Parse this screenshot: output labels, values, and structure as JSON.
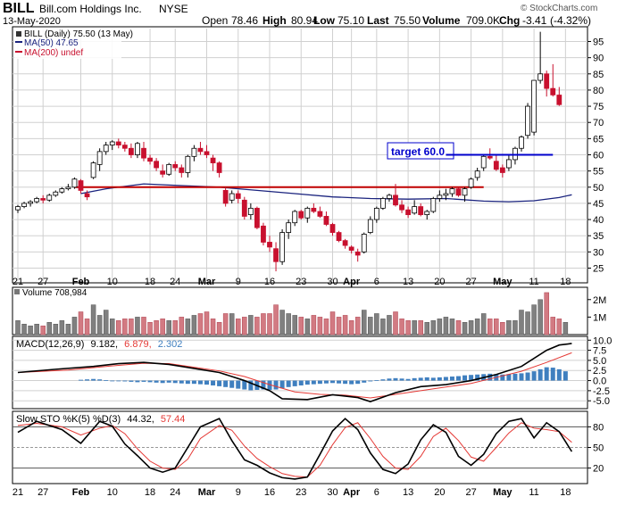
{
  "header": {
    "ticker": "BILL",
    "company": "Bill.com Holdings Inc.",
    "exchange": "NYSE",
    "date": "13-May-2020",
    "open_label": "Open",
    "open": "78.46",
    "high_label": "High",
    "high": "80.94",
    "low_label": "Low",
    "low": "75.10",
    "last_label": "Last",
    "last": "75.50",
    "volume_label": "Volume",
    "volume": "709.0K",
    "chg_label": "Chg",
    "chg": "-3.41",
    "chg_pct": "(-4.32%)",
    "copyright": "© StockCharts.com"
  },
  "legend": {
    "price": "BILL (Daily) 75.50 (13 May)",
    "ma50": "MA(50) 47.65",
    "ma200": "MA(200) undef",
    "volume": "Volume 708,984",
    "macd_prefix": "MACD(12,26,9)",
    "macd_val": "9.182,",
    "macd_signal": "6.879,",
    "macd_hist": "2.302",
    "sto_prefix": "Slow STO %K(5) %D(3)",
    "sto_k": "44.32,",
    "sto_d": "57.44"
  },
  "annotation": {
    "target_label": "target 60.0"
  },
  "colors": {
    "up": "#808080",
    "down": "#c8102e",
    "ma50": "#1a237e",
    "ma200": "#c8102e",
    "macd": "#000000",
    "signal": "#e53935",
    "hist": "#3f7fbf",
    "sto_k": "#000000",
    "sto_d": "#e53935",
    "resistance": "#c00000",
    "target": "#0000cc"
  },
  "chart_data": {
    "type": "candlestick",
    "x_ticks": [
      "21",
      "27",
      "Feb",
      "10",
      "18",
      "24",
      "Mar",
      "9",
      "16",
      "23",
      "30",
      "Apr",
      "6",
      "13",
      "20",
      "27",
      "May",
      "11",
      "18"
    ],
    "price": {
      "ylim": [
        21,
        99
      ],
      "y_ticks": [
        25,
        30,
        35,
        40,
        45,
        50,
        55,
        60,
        65,
        70,
        75,
        80,
        85,
        90,
        95
      ],
      "candles": [
        [
          43,
          44.5,
          42,
          44
        ],
        [
          44,
          45.5,
          43.5,
          45
        ],
        [
          45,
          46,
          44,
          45.5
        ],
        [
          45.5,
          47,
          45,
          46.5
        ],
        [
          46.5,
          47.5,
          45,
          46
        ],
        [
          46,
          48,
          45.5,
          47.5
        ],
        [
          47.5,
          49,
          47,
          48.5
        ],
        [
          48.5,
          50,
          48,
          49.5
        ],
        [
          49.5,
          51,
          49,
          50
        ],
        [
          50,
          53,
          49.5,
          52.5
        ],
        [
          52,
          52.5,
          48,
          49
        ],
        [
          48,
          49,
          46,
          47
        ],
        [
          53,
          58,
          52.5,
          57.5
        ],
        [
          57,
          62,
          55,
          61
        ],
        [
          61,
          64,
          60,
          63
        ],
        [
          63,
          64.5,
          61.5,
          64
        ],
        [
          64,
          65,
          62,
          63
        ],
        [
          63,
          64,
          61,
          62
        ],
        [
          62,
          63.5,
          59,
          60
        ],
        [
          60,
          64,
          59,
          63.5
        ],
        [
          62,
          64,
          58,
          59
        ],
        [
          59,
          60,
          57,
          58
        ],
        [
          58,
          59,
          55,
          56
        ],
        [
          55,
          57,
          53,
          54
        ],
        [
          54,
          57.5,
          53.5,
          57
        ],
        [
          57,
          58,
          55,
          56
        ],
        [
          56,
          57,
          53,
          54.5
        ],
        [
          54.5,
          60,
          53,
          59.5
        ],
        [
          59.5,
          63,
          58,
          62
        ],
        [
          62,
          64,
          60,
          61
        ],
        [
          61,
          63,
          59,
          60
        ],
        [
          59,
          60,
          55,
          57.5
        ],
        [
          57.5,
          58,
          53,
          54.5
        ],
        [
          49,
          50,
          44,
          45
        ],
        [
          46,
          49,
          45,
          48
        ],
        [
          48,
          49,
          45,
          46.5
        ],
        [
          46,
          47,
          40,
          41
        ],
        [
          41.5,
          45,
          40,
          43.5
        ],
        [
          43.5,
          44,
          37,
          37.5
        ],
        [
          38,
          39,
          32,
          33
        ],
        [
          33,
          35,
          30,
          31.5
        ],
        [
          31,
          33,
          24,
          27
        ],
        [
          27,
          37,
          26,
          36
        ],
        [
          36,
          40,
          34,
          39
        ],
        [
          39,
          43,
          38,
          42.5
        ],
        [
          42.5,
          43,
          40,
          40.5
        ],
        [
          40.5,
          44,
          39,
          43.5
        ],
        [
          43.5,
          45,
          42,
          42.5
        ],
        [
          42.5,
          44,
          40.5,
          41
        ],
        [
          41,
          42.5,
          38,
          38.5
        ],
        [
          38.5,
          39,
          35,
          36
        ],
        [
          36,
          36.5,
          33,
          33.5
        ],
        [
          33.5,
          34,
          31,
          32
        ],
        [
          31.5,
          32,
          29.5,
          30.5
        ],
        [
          30,
          31,
          27,
          29
        ],
        [
          30,
          36,
          29.5,
          35.5
        ],
        [
          36,
          41,
          35.5,
          40
        ],
        [
          40,
          44,
          39,
          43.5
        ],
        [
          43.5,
          47,
          43,
          46.5
        ],
        [
          46.5,
          48,
          45.5,
          47.5
        ],
        [
          47.5,
          51,
          44,
          44.5
        ],
        [
          44.5,
          46,
          42,
          43
        ],
        [
          43,
          44,
          40.5,
          41.5
        ],
        [
          42,
          46,
          41.5,
          44
        ],
        [
          44,
          45,
          41,
          41.5
        ],
        [
          41.5,
          43,
          40,
          42.5
        ],
        [
          42.5,
          47,
          42,
          46.5
        ],
        [
          46.5,
          49,
          45.5,
          47.5
        ],
        [
          47.5,
          49.5,
          46,
          48
        ],
        [
          48,
          50,
          47,
          49.5
        ],
        [
          49.5,
          50,
          47,
          47.5
        ],
        [
          47.5,
          50,
          45.5,
          49.5
        ],
        [
          50,
          53,
          49.5,
          52.5
        ],
        [
          53,
          56,
          52,
          55
        ],
        [
          56,
          60,
          55,
          59.5
        ],
        [
          59.5,
          62,
          58.5,
          59
        ],
        [
          58,
          60,
          55,
          55.5
        ],
        [
          56,
          57,
          53,
          54.5
        ],
        [
          56,
          60,
          55,
          58.5
        ],
        [
          58.5,
          62.5,
          57,
          62
        ],
        [
          62,
          66,
          61,
          65.5
        ],
        [
          66,
          76,
          65,
          75
        ],
        [
          67,
          83,
          66,
          83
        ],
        [
          83,
          98,
          82,
          85
        ],
        [
          85,
          86,
          78,
          80.5
        ],
        [
          80.5,
          88,
          78,
          78.5
        ],
        [
          78.46,
          80.94,
          75.1,
          75.5
        ]
      ],
      "ma50": [
        [
          10,
          48
        ],
        [
          14,
          49.5
        ],
        [
          20,
          51
        ],
        [
          26,
          50.5
        ],
        [
          32,
          50
        ],
        [
          38,
          49
        ],
        [
          44,
          48
        ],
        [
          50,
          47
        ],
        [
          56,
          46.5
        ],
        [
          62,
          46.3
        ],
        [
          68,
          46.5
        ],
        [
          74,
          45.7
        ],
        [
          78,
          45.5
        ],
        [
          82,
          45.8
        ],
        [
          86,
          46.8
        ],
        [
          88,
          47.65
        ]
      ],
      "resistance": {
        "value": 50,
        "from": 9,
        "to": 74
      },
      "target": {
        "value": 60,
        "from": 68,
        "to": 85
      }
    },
    "volume": {
      "ylim": [
        0,
        2.6
      ],
      "y_ticks": [
        1,
        2
      ],
      "y_tick_labels": [
        "1M",
        "2M"
      ],
      "values": [
        0.8,
        0.6,
        0.5,
        0.6,
        0.5,
        0.7,
        0.6,
        0.8,
        0.6,
        1.0,
        1.3,
        0.9,
        1.7,
        1.1,
        1.4,
        0.9,
        0.8,
        0.9,
        0.9,
        1.0,
        1.0,
        0.7,
        0.8,
        0.9,
        0.8,
        0.8,
        1.0,
        0.9,
        1.1,
        1.2,
        1.3,
        0.9,
        0.7,
        1.2,
        1.2,
        0.9,
        1.0,
        1.1,
        1.0,
        1.2,
        1.2,
        1.7,
        1.4,
        1.2,
        1.1,
        1.0,
        0.9,
        1.1,
        1.0,
        0.9,
        1.3,
        1.0,
        1.1,
        0.8,
        1.0,
        1.4,
        1.0,
        1.2,
        0.9,
        1.1,
        1.3,
        0.9,
        0.8,
        0.8,
        0.8,
        0.7,
        0.8,
        0.9,
        1.0,
        0.9,
        0.8,
        0.7,
        0.8,
        0.9,
        1.2,
        0.9,
        0.9,
        0.7,
        0.8,
        0.8,
        1.4,
        1.3,
        1.7,
        2.0,
        2.4,
        1.0,
        0.9,
        0.7
      ]
    },
    "macd": {
      "ylim": [
        -6.5,
        10.5
      ],
      "y_ticks": [
        -5.0,
        -2.5,
        0.0,
        2.5,
        5.0,
        7.5,
        10.0
      ],
      "macd_line": [
        [
          0,
          2.0
        ],
        [
          6,
          2.8
        ],
        [
          12,
          3.5
        ],
        [
          16,
          4.2
        ],
        [
          20,
          4.5
        ],
        [
          24,
          4.0
        ],
        [
          28,
          3.0
        ],
        [
          32,
          2.0
        ],
        [
          36,
          0.0
        ],
        [
          40,
          -2.5
        ],
        [
          42,
          -4.5
        ],
        [
          46,
          -4.7
        ],
        [
          50,
          -3.5
        ],
        [
          54,
          -4.2
        ],
        [
          56,
          -5.2
        ],
        [
          60,
          -3.0
        ],
        [
          64,
          -1.5
        ],
        [
          68,
          -1.0
        ],
        [
          72,
          0.0
        ],
        [
          76,
          1.5
        ],
        [
          80,
          3.5
        ],
        [
          84,
          7.5
        ],
        [
          86,
          8.8
        ],
        [
          88,
          9.18
        ]
      ],
      "signal_line": [
        [
          0,
          2.0
        ],
        [
          8,
          2.6
        ],
        [
          14,
          3.5
        ],
        [
          20,
          4.3
        ],
        [
          24,
          4.2
        ],
        [
          28,
          3.3
        ],
        [
          32,
          2.4
        ],
        [
          36,
          1.0
        ],
        [
          40,
          -1.0
        ],
        [
          44,
          -2.8
        ],
        [
          48,
          -3.4
        ],
        [
          52,
          -3.6
        ],
        [
          56,
          -4.3
        ],
        [
          60,
          -3.4
        ],
        [
          64,
          -2.5
        ],
        [
          68,
          -1.6
        ],
        [
          72,
          -0.7
        ],
        [
          76,
          0.8
        ],
        [
          80,
          2.3
        ],
        [
          84,
          4.5
        ],
        [
          88,
          6.88
        ]
      ],
      "histogram": [
        0,
        0.1,
        0.2,
        0.2,
        0.1,
        0.3,
        0.2,
        0.3,
        0.3,
        0.3,
        0.2,
        0.3,
        0.4,
        0.3,
        0.1,
        0.0,
        -0.1,
        -0.2,
        -0.3,
        -0.4,
        -0.3,
        -0.4,
        -0.5,
        -0.6,
        -0.5,
        -0.6,
        -0.7,
        -0.8,
        -0.8,
        -0.9,
        -1.0,
        -1.2,
        -1.4,
        -1.6,
        -1.8,
        -2.0,
        -2.2,
        -2.4,
        -2.3,
        -2.2,
        -2.3,
        -2.2,
        -1.9,
        -1.6,
        -1.4,
        -1.2,
        -1.0,
        -0.9,
        -0.8,
        -0.7,
        -0.6,
        -0.7,
        -0.8,
        -0.9,
        -0.8,
        -0.5,
        -0.2,
        0.1,
        0.3,
        0.5,
        0.6,
        0.5,
        0.4,
        0.6,
        0.7,
        0.8,
        0.7,
        0.8,
        0.9,
        1.0,
        1.1,
        1.3,
        1.4,
        1.5,
        1.6,
        1.7,
        1.6,
        1.5,
        1.6,
        1.7,
        1.8,
        2.0,
        2.3,
        2.8,
        3.3,
        3.2,
        2.8,
        2.3
      ]
    },
    "sto": {
      "ylim": [
        0,
        100
      ],
      "y_ticks": [
        20,
        50,
        80
      ],
      "k_line": [
        [
          0,
          72
        ],
        [
          3,
          88
        ],
        [
          7,
          76
        ],
        [
          10,
          56
        ],
        [
          13,
          88
        ],
        [
          15,
          81
        ],
        [
          17,
          55
        ],
        [
          19,
          38
        ],
        [
          21,
          20
        ],
        [
          23,
          14
        ],
        [
          25,
          20
        ],
        [
          27,
          50
        ],
        [
          29,
          80
        ],
        [
          32,
          92
        ],
        [
          34,
          60
        ],
        [
          36,
          32
        ],
        [
          38,
          24
        ],
        [
          40,
          13
        ],
        [
          42,
          6
        ],
        [
          44,
          4
        ],
        [
          46,
          7
        ],
        [
          48,
          40
        ],
        [
          50,
          74
        ],
        [
          52,
          92
        ],
        [
          54,
          76
        ],
        [
          56,
          42
        ],
        [
          58,
          18
        ],
        [
          60,
          12
        ],
        [
          62,
          26
        ],
        [
          64,
          61
        ],
        [
          66,
          83
        ],
        [
          68,
          72
        ],
        [
          70,
          37
        ],
        [
          72,
          24
        ],
        [
          74,
          40
        ],
        [
          76,
          70
        ],
        [
          78,
          88
        ],
        [
          80,
          92
        ],
        [
          82,
          64
        ],
        [
          84,
          86
        ],
        [
          86,
          73
        ],
        [
          88,
          44
        ]
      ],
      "d_line": [
        [
          0,
          82
        ],
        [
          3,
          85
        ],
        [
          7,
          80
        ],
        [
          10,
          68
        ],
        [
          13,
          78
        ],
        [
          15,
          82
        ],
        [
          17,
          70
        ],
        [
          19,
          48
        ],
        [
          21,
          30
        ],
        [
          23,
          20
        ],
        [
          25,
          18
        ],
        [
          27,
          33
        ],
        [
          29,
          63
        ],
        [
          32,
          82
        ],
        [
          34,
          75
        ],
        [
          36,
          52
        ],
        [
          38,
          34
        ],
        [
          40,
          22
        ],
        [
          42,
          12
        ],
        [
          44,
          8
        ],
        [
          46,
          7
        ],
        [
          48,
          24
        ],
        [
          50,
          54
        ],
        [
          52,
          79
        ],
        [
          54,
          86
        ],
        [
          56,
          63
        ],
        [
          58,
          37
        ],
        [
          60,
          20
        ],
        [
          62,
          18
        ],
        [
          64,
          37
        ],
        [
          66,
          66
        ],
        [
          68,
          78
        ],
        [
          70,
          60
        ],
        [
          72,
          36
        ],
        [
          74,
          30
        ],
        [
          76,
          50
        ],
        [
          78,
          71
        ],
        [
          80,
          86
        ],
        [
          82,
          78
        ],
        [
          84,
          76
        ],
        [
          86,
          73
        ],
        [
          88,
          57.44
        ]
      ]
    }
  }
}
